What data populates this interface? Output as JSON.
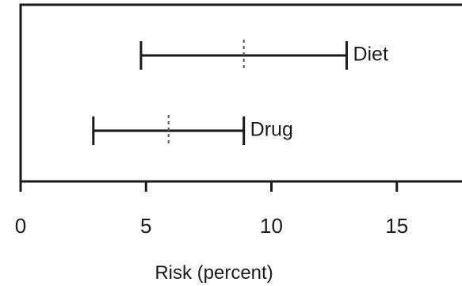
{
  "chart_data": {
    "type": "range",
    "title": "",
    "xlabel": "Risk (percent)",
    "ylabel": "",
    "xlim": [
      0,
      17.6
    ],
    "xticks": [
      0,
      5,
      10,
      15
    ],
    "xtick_labels": [
      "0",
      "5",
      "10",
      "15"
    ],
    "grid": false,
    "legend": "none",
    "series": [
      {
        "name": "Diet",
        "low": 4.8,
        "mid": 8.9,
        "high": 13.0
      },
      {
        "name": "Drug",
        "low": 2.9,
        "mid": 5.9,
        "high": 8.9
      }
    ],
    "colors": {
      "ink": "#1a1a1a",
      "midline": "#555555"
    }
  }
}
